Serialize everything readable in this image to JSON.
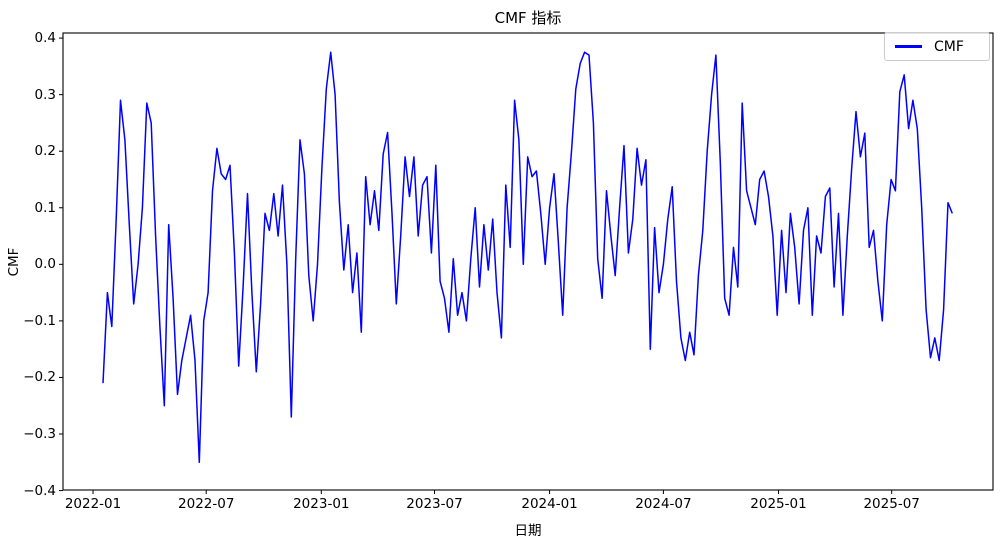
{
  "figure": {
    "title": "CMF 指标",
    "xlabel": "日期",
    "ylabel": "CMF",
    "legend_label": "CMF",
    "line_color": "#0000ff",
    "background_color": "#ffffff",
    "spine_color": "#000000"
  },
  "chart_data": {
    "type": "line",
    "title": "CMF 指标",
    "xlabel": "日期",
    "ylabel": "CMF",
    "grid": false,
    "legend_position": "upper right",
    "xlim": [
      "2021-11-14",
      "2025-12-10"
    ],
    "ylim": [
      -0.399,
      0.409
    ],
    "x_ticks": [
      {
        "value": "2022-01-01",
        "label": "2022-01"
      },
      {
        "value": "2022-07-01",
        "label": "2022-07"
      },
      {
        "value": "2023-01-01",
        "label": "2023-01"
      },
      {
        "value": "2023-07-01",
        "label": "2023-07"
      },
      {
        "value": "2024-01-01",
        "label": "2024-01"
      },
      {
        "value": "2024-07-01",
        "label": "2024-07"
      },
      {
        "value": "2025-01-01",
        "label": "2025-01"
      },
      {
        "value": "2025-07-01",
        "label": "2025-07"
      }
    ],
    "y_ticks": [
      {
        "value": 0.4,
        "label": "0.4"
      },
      {
        "value": 0.3,
        "label": "0.3"
      },
      {
        "value": 0.2,
        "label": "0.2"
      },
      {
        "value": 0.1,
        "label": "0.1"
      },
      {
        "value": 0.0,
        "label": "0.0"
      },
      {
        "value": -0.1,
        "label": "−0.1"
      },
      {
        "value": -0.2,
        "label": "−0.2"
      },
      {
        "value": -0.3,
        "label": "−0.3"
      },
      {
        "value": -0.4,
        "label": "−0.4"
      }
    ],
    "series": [
      {
        "name": "CMF",
        "color": "#0000ff",
        "x": [
          "2022-01-17",
          "2022-01-24",
          "2022-01-31",
          "2022-02-07",
          "2022-02-14",
          "2022-02-21",
          "2022-02-28",
          "2022-03-07",
          "2022-03-14",
          "2022-03-21",
          "2022-03-28",
          "2022-04-04",
          "2022-04-11",
          "2022-04-18",
          "2022-04-25",
          "2022-05-02",
          "2022-05-09",
          "2022-05-16",
          "2022-05-23",
          "2022-05-30",
          "2022-06-06",
          "2022-06-13",
          "2022-06-20",
          "2022-06-27",
          "2022-07-04",
          "2022-07-11",
          "2022-07-18",
          "2022-07-25",
          "2022-08-01",
          "2022-08-08",
          "2022-08-15",
          "2022-08-22",
          "2022-08-29",
          "2022-09-05",
          "2022-09-12",
          "2022-09-19",
          "2022-09-26",
          "2022-10-03",
          "2022-10-10",
          "2022-10-17",
          "2022-10-24",
          "2022-10-31",
          "2022-11-07",
          "2022-11-14",
          "2022-11-21",
          "2022-11-28",
          "2022-12-05",
          "2022-12-12",
          "2022-12-19",
          "2022-12-26",
          "2023-01-02",
          "2023-01-09",
          "2023-01-16",
          "2023-01-23",
          "2023-01-30",
          "2023-02-06",
          "2023-02-13",
          "2023-02-20",
          "2023-02-27",
          "2023-03-06",
          "2023-03-13",
          "2023-03-20",
          "2023-03-27",
          "2023-04-03",
          "2023-04-10",
          "2023-04-17",
          "2023-04-24",
          "2023-05-01",
          "2023-05-08",
          "2023-05-15",
          "2023-05-22",
          "2023-05-29",
          "2023-06-05",
          "2023-06-12",
          "2023-06-19",
          "2023-06-26",
          "2023-07-03",
          "2023-07-10",
          "2023-07-17",
          "2023-07-24",
          "2023-07-31",
          "2023-08-07",
          "2023-08-14",
          "2023-08-21",
          "2023-08-28",
          "2023-09-04",
          "2023-09-11",
          "2023-09-18",
          "2023-09-25",
          "2023-10-02",
          "2023-10-09",
          "2023-10-16",
          "2023-10-23",
          "2023-10-30",
          "2023-11-06",
          "2023-11-13",
          "2023-11-20",
          "2023-11-27",
          "2023-12-04",
          "2023-12-11",
          "2023-12-18",
          "2023-12-25",
          "2024-01-01",
          "2024-01-08",
          "2024-01-15",
          "2024-01-22",
          "2024-01-29",
          "2024-02-05",
          "2024-02-12",
          "2024-02-19",
          "2024-02-26",
          "2024-03-04",
          "2024-03-11",
          "2024-03-18",
          "2024-03-25",
          "2024-04-01",
          "2024-04-08",
          "2024-04-15",
          "2024-04-22",
          "2024-04-29",
          "2024-05-06",
          "2024-05-13",
          "2024-05-20",
          "2024-05-27",
          "2024-06-03",
          "2024-06-10",
          "2024-06-17",
          "2024-06-24",
          "2024-07-01",
          "2024-07-08",
          "2024-07-15",
          "2024-07-22",
          "2024-07-29",
          "2024-08-05",
          "2024-08-12",
          "2024-08-19",
          "2024-08-26",
          "2024-09-02",
          "2024-09-09",
          "2024-09-16",
          "2024-09-23",
          "2024-09-30",
          "2024-10-07",
          "2024-10-14",
          "2024-10-21",
          "2024-10-28",
          "2024-11-04",
          "2024-11-11",
          "2024-11-18",
          "2024-11-25",
          "2024-12-02",
          "2024-12-09",
          "2024-12-16",
          "2024-12-23",
          "2024-12-30",
          "2025-01-06",
          "2025-01-13",
          "2025-01-20",
          "2025-01-27",
          "2025-02-03",
          "2025-02-10",
          "2025-02-17",
          "2025-02-24",
          "2025-03-03",
          "2025-03-10",
          "2025-03-17",
          "2025-03-24",
          "2025-03-31",
          "2025-04-07",
          "2025-04-14",
          "2025-04-21",
          "2025-04-28",
          "2025-05-05",
          "2025-05-12",
          "2025-05-19",
          "2025-05-26",
          "2025-06-02",
          "2025-06-09",
          "2025-06-16",
          "2025-06-23",
          "2025-06-30",
          "2025-07-07",
          "2025-07-14",
          "2025-07-21",
          "2025-07-28",
          "2025-08-04",
          "2025-08-11",
          "2025-08-18",
          "2025-08-25",
          "2025-09-01",
          "2025-09-08",
          "2025-09-15",
          "2025-09-22",
          "2025-09-29",
          "2025-10-06"
        ],
        "values": [
          -0.21,
          -0.05,
          -0.11,
          0.08,
          0.29,
          0.22,
          0.07,
          -0.07,
          0.0,
          0.1,
          0.285,
          0.25,
          0.05,
          -0.11,
          -0.25,
          0.07,
          -0.06,
          -0.23,
          -0.17,
          -0.13,
          -0.09,
          -0.17,
          -0.35,
          -0.1,
          -0.05,
          0.13,
          0.205,
          0.16,
          0.15,
          0.175,
          0.02,
          -0.18,
          -0.04,
          0.125,
          -0.05,
          -0.19,
          -0.07,
          0.09,
          0.06,
          0.125,
          0.05,
          0.14,
          0.0,
          -0.27,
          0.01,
          0.22,
          0.16,
          -0.02,
          -0.1,
          0.0,
          0.17,
          0.31,
          0.375,
          0.3,
          0.11,
          -0.01,
          0.07,
          -0.05,
          0.02,
          -0.12,
          0.155,
          0.07,
          0.13,
          0.06,
          0.195,
          0.233,
          0.09,
          -0.07,
          0.05,
          0.19,
          0.12,
          0.19,
          0.05,
          0.14,
          0.155,
          0.02,
          0.175,
          -0.03,
          -0.06,
          -0.12,
          0.01,
          -0.09,
          -0.05,
          -0.1,
          0.01,
          0.1,
          -0.04,
          0.07,
          -0.01,
          0.08,
          -0.05,
          -0.13,
          0.14,
          0.03,
          0.29,
          0.22,
          0.0,
          0.19,
          0.155,
          0.165,
          0.09,
          0.0,
          0.1,
          0.16,
          0.04,
          -0.09,
          0.1,
          0.2,
          0.31,
          0.355,
          0.375,
          0.37,
          0.25,
          0.01,
          -0.06,
          0.13,
          0.05,
          -0.02,
          0.1,
          0.21,
          0.02,
          0.08,
          0.205,
          0.14,
          0.185,
          -0.15,
          0.065,
          -0.05,
          0.0,
          0.08,
          0.137,
          -0.03,
          -0.13,
          -0.17,
          -0.12,
          -0.16,
          -0.02,
          0.06,
          0.2,
          0.3,
          0.37,
          0.18,
          -0.06,
          -0.09,
          0.03,
          -0.04,
          0.285,
          0.13,
          0.1,
          0.07,
          0.15,
          0.165,
          0.12,
          0.05,
          -0.09,
          0.06,
          -0.05,
          0.09,
          0.03,
          -0.07,
          0.06,
          0.1,
          -0.09,
          0.05,
          0.02,
          0.12,
          0.135,
          -0.04,
          0.09,
          -0.09,
          0.05,
          0.17,
          0.27,
          0.19,
          0.232,
          0.03,
          0.06,
          -0.03,
          -0.1,
          0.07,
          0.15,
          0.13,
          0.305,
          0.335,
          0.24,
          0.29,
          0.24,
          0.1,
          -0.08,
          -0.165,
          -0.13,
          -0.17,
          -0.08,
          0.109,
          0.09
        ]
      }
    ]
  }
}
